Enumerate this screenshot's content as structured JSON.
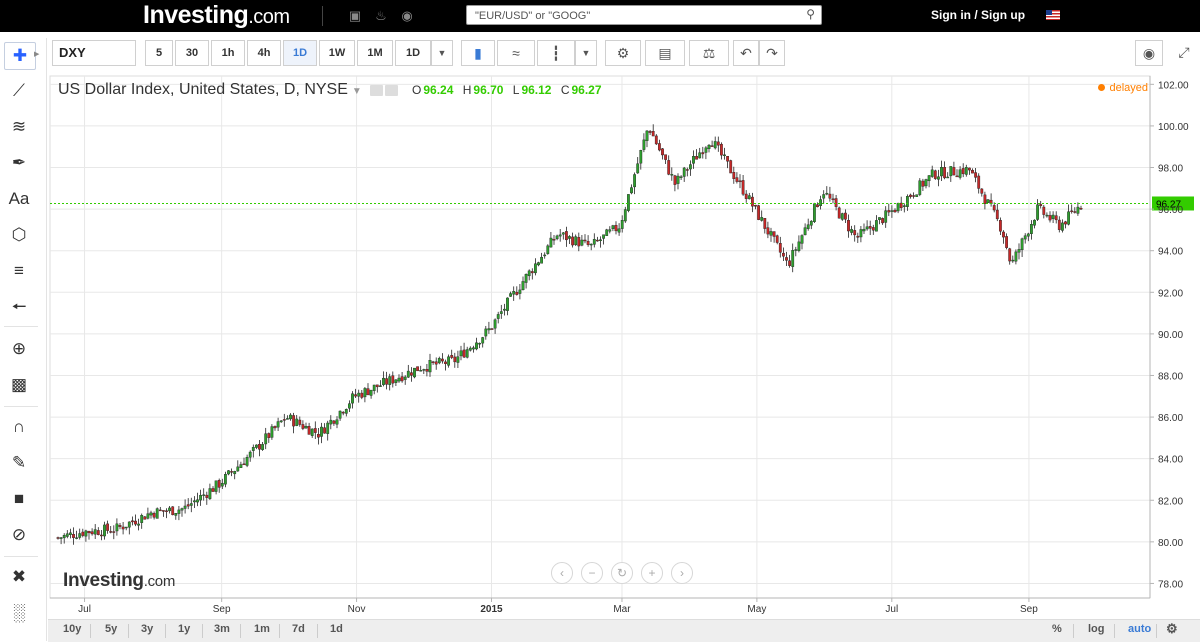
{
  "header": {
    "logo_main": "Investing",
    "logo_suffix": ".com",
    "icons": [
      "briefcase-icon",
      "bell-icon",
      "globe-icon"
    ],
    "search_placeholder": "\"EUR/USD\" or \"GOOG\"",
    "sign_in": "Sign in",
    "slash": "/",
    "sign_up": "Sign up"
  },
  "left_toolbar": {
    "tools": [
      "crosshair-icon",
      "trendline-icon",
      "fib-icon",
      "brush-icon",
      "text-icon",
      "pattern-icon",
      "ruler-icon",
      "arrow-left-icon",
      "zoom-icon",
      "measure-icon",
      "magnet-icon",
      "lock-drawings-icon",
      "lock-icon",
      "hide-icon",
      "settings-tools-icon",
      "trash-icon"
    ],
    "text_tool_label": "Aa"
  },
  "toolbar": {
    "symbol": "DXY",
    "intervals": [
      "5",
      "30",
      "1h",
      "4h",
      "1D",
      "1W",
      "1M",
      "1D"
    ],
    "active_interval": "1D"
  },
  "chart_header": {
    "title": "US Dollar Index, United States, D, NYSE",
    "o_label": "O",
    "o_value": "96.24",
    "h_label": "H",
    "h_value": "96.70",
    "l_label": "L",
    "l_value": "96.12",
    "c_label": "C",
    "c_value": "96.27",
    "delayed": "delayed"
  },
  "watermark": {
    "main": "Investing",
    "suffix": ".com"
  },
  "bottom_bar": {
    "ranges": [
      "10y",
      "5y",
      "3y",
      "1y",
      "3m",
      "1m",
      "7d",
      "1d"
    ],
    "percent": "%",
    "log": "log",
    "auto": "auto"
  },
  "chart_data": {
    "type": "candlestick",
    "title": "US Dollar Index, United States, D, NYSE",
    "x_ticks": [
      "Jul",
      "Sep",
      "Nov",
      "2015",
      "Mar",
      "May",
      "Jul",
      "Sep"
    ],
    "y_ticks": [
      "78.00",
      "80.00",
      "82.00",
      "84.00",
      "86.00",
      "88.00",
      "90.00",
      "92.00",
      "94.00",
      "96.00",
      "98.00",
      "100.00",
      "102.00"
    ],
    "ylim": [
      77.3,
      102.4
    ],
    "last_price": 96.27,
    "last_price_label": "96.27",
    "grid": true,
    "up_color": "#2e9e2e",
    "down_color": "#c62828",
    "price_line_color": "#33cc00",
    "approx_close_path": [
      {
        "x": "2014-06-19",
        "close": 80.2
      },
      {
        "x": "2014-07-01",
        "close": 80.5
      },
      {
        "x": "2014-07-15",
        "close": 80.6
      },
      {
        "x": "2014-07-31",
        "close": 81.4
      },
      {
        "x": "2014-08-15",
        "close": 81.6
      },
      {
        "x": "2014-08-31",
        "close": 82.8
      },
      {
        "x": "2014-09-15",
        "close": 84.3
      },
      {
        "x": "2014-09-30",
        "close": 86.0
      },
      {
        "x": "2014-10-15",
        "close": 85.2
      },
      {
        "x": "2014-10-31",
        "close": 87.0
      },
      {
        "x": "2014-11-15",
        "close": 87.7
      },
      {
        "x": "2014-11-30",
        "close": 88.4
      },
      {
        "x": "2014-12-15",
        "close": 88.7
      },
      {
        "x": "2014-12-31",
        "close": 90.2
      },
      {
        "x": "2015-01-15",
        "close": 92.5
      },
      {
        "x": "2015-01-31",
        "close": 94.8
      },
      {
        "x": "2015-02-15",
        "close": 94.2
      },
      {
        "x": "2015-02-28",
        "close": 95.2
      },
      {
        "x": "2015-03-13",
        "close": 100.0
      },
      {
        "x": "2015-03-25",
        "close": 97.2
      },
      {
        "x": "2015-04-10",
        "close": 99.4
      },
      {
        "x": "2015-04-25",
        "close": 96.9
      },
      {
        "x": "2015-05-15",
        "close": 93.3
      },
      {
        "x": "2015-05-31",
        "close": 96.9
      },
      {
        "x": "2015-06-15",
        "close": 94.6
      },
      {
        "x": "2015-06-30",
        "close": 95.8
      },
      {
        "x": "2015-07-20",
        "close": 97.7
      },
      {
        "x": "2015-08-05",
        "close": 97.9
      },
      {
        "x": "2015-08-20",
        "close": 95.0
      },
      {
        "x": "2015-08-24",
        "close": 93.3
      },
      {
        "x": "2015-09-05",
        "close": 96.0
      },
      {
        "x": "2015-09-15",
        "close": 95.2
      },
      {
        "x": "2015-09-25",
        "close": 96.27
      }
    ]
  }
}
